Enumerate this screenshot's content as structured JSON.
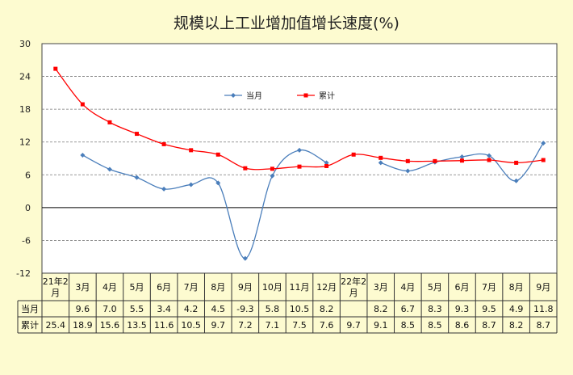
{
  "chart_data": {
    "type": "line",
    "title": "规模以上工业增加值增长速度(%)",
    "xlabel": "",
    "ylabel": "",
    "ylim": [
      -12,
      30
    ],
    "yticks": [
      30,
      24,
      18,
      12,
      6,
      0,
      -6,
      -12
    ],
    "grid": true,
    "legend": "top-center",
    "categories": [
      "21年2月",
      "3月",
      "4月",
      "5月",
      "6月",
      "7月",
      "8月",
      "9月",
      "10月",
      "11月",
      "12月",
      "22年2月",
      "3月",
      "4月",
      "5月",
      "6月",
      "7月",
      "8月",
      "9月"
    ],
    "series": [
      {
        "name": "当月",
        "color": "#4a7ebb",
        "values": [
          null,
          9.6,
          7.0,
          5.5,
          3.4,
          4.2,
          4.5,
          -9.3,
          5.8,
          10.5,
          8.2,
          null,
          8.2,
          6.7,
          8.3,
          9.3,
          9.5,
          4.9,
          11.8
        ],
        "display": [
          "",
          "9.6",
          "7.0",
          "5.5",
          "3.4",
          "4.2",
          "4.5",
          "-9.3",
          "5.8",
          "10.5",
          "8.2",
          "",
          "8.2",
          "6.7",
          "8.3",
          "9.3",
          "9.5",
          "4.9",
          "11.8"
        ]
      },
      {
        "name": "累计",
        "color": "#ff0000",
        "values": [
          25.4,
          18.9,
          15.6,
          13.5,
          11.6,
          10.5,
          9.7,
          7.2,
          7.1,
          7.5,
          7.6,
          9.7,
          9.1,
          8.5,
          8.5,
          8.6,
          8.7,
          8.2,
          8.7
        ],
        "display": [
          "25.4",
          "18.9",
          "15.6",
          "13.5",
          "11.6",
          "10.5",
          "9.7",
          "7.2",
          "7.1",
          "7.5",
          "7.6",
          "9.7",
          "9.1",
          "8.5",
          "8.5",
          "8.6",
          "8.7",
          "8.2",
          "8.7"
        ]
      }
    ]
  }
}
